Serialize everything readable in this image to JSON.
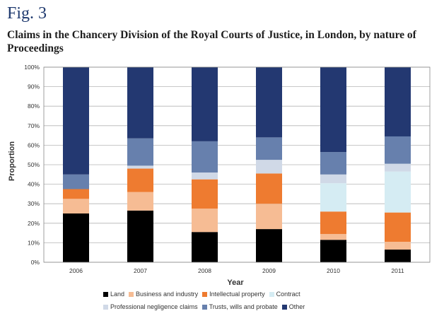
{
  "figure": {
    "label": "Fig. 3",
    "title": "Claims in the Chancery Division of the Royal Courts of Justice, in London, by nature of Proceedings"
  },
  "chart_data": {
    "type": "bar",
    "stacked": true,
    "title": "Claims in the Chancery Division of the Royal Courts of Justice, in London, by nature of Proceedings",
    "xlabel": "Year",
    "ylabel": "Proportion",
    "ylim": [
      0,
      100
    ],
    "y_ticks": [
      "0%",
      "10%",
      "20%",
      "30%",
      "40%",
      "50%",
      "60%",
      "70%",
      "80%",
      "90%",
      "100%"
    ],
    "grid": true,
    "legend_position": "bottom",
    "categories": [
      "2006",
      "2007",
      "2008",
      "2009",
      "2010",
      "2011"
    ],
    "series": [
      {
        "name": "Land",
        "color": "#000000",
        "values": [
          25,
          26.5,
          15.5,
          17,
          11.5,
          6.5
        ]
      },
      {
        "name": "Business and industry",
        "color": "#f6bc94",
        "values": [
          7.5,
          9.5,
          12,
          13,
          3,
          4
        ]
      },
      {
        "name": "Intellectual property",
        "color": "#ee7b30",
        "values": [
          5,
          12,
          15,
          15.5,
          11.5,
          15
        ]
      },
      {
        "name": "Contract",
        "color": "#d5ecf3",
        "values": [
          0,
          0,
          0,
          0,
          14.5,
          21
        ]
      },
      {
        "name": "Professional negligence claims",
        "color": "#d0d9e7",
        "values": [
          0,
          1.5,
          3.5,
          7,
          4.5,
          4
        ]
      },
      {
        "name": "Trusts, wills and probate",
        "color": "#6780ad",
        "values": [
          7.5,
          14,
          16,
          11.5,
          11.5,
          14
        ]
      },
      {
        "name": "Other",
        "color": "#233871",
        "values": [
          55,
          36.5,
          38,
          36,
          43.5,
          35.5
        ]
      }
    ]
  }
}
